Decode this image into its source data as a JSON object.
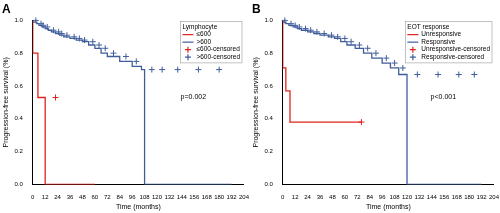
{
  "chart_data": [
    {
      "type": "line",
      "title": "A",
      "x_label": "Time (months)",
      "y_label": "Progression-free survival (%)",
      "legend_title": "Lymphocyte",
      "legend": "upper right",
      "annotation": "p=0.002",
      "grid": false,
      "xlim": [
        0,
        204
      ],
      "xticks": [
        0,
        12,
        24,
        36,
        48,
        60,
        72,
        84,
        96,
        108,
        120,
        132,
        144,
        156,
        168,
        180,
        192,
        204
      ],
      "ylim": [
        0,
        1
      ],
      "yticks": [
        {
          "value": 0,
          "label": "0.0"
        },
        0.2,
        0.4,
        0.6,
        0.8,
        {
          "value": 1,
          "label": "1.0"
        }
      ],
      "series": [
        {
          "name": "≤600",
          "type": "line",
          "line_style": "step",
          "color": "#e0231c",
          "x": [
            0,
            5,
            12,
            60
          ],
          "values": [
            1,
            0.8,
            0.53,
            0
          ]
        },
        {
          "name": ">600",
          "type": "line",
          "line_style": "step",
          "color": "#3f5d9c",
          "x": [
            0,
            4,
            6,
            9,
            12,
            15,
            18,
            22,
            26,
            30,
            36,
            42,
            48,
            54,
            60,
            66,
            72,
            84,
            96,
            105,
            108,
            192
          ],
          "values": [
            1,
            0.99,
            0.98,
            0.97,
            0.96,
            0.95,
            0.94,
            0.93,
            0.92,
            0.91,
            0.9,
            0.89,
            0.88,
            0.87,
            0.85,
            0.83,
            0.8,
            0.78,
            0.75,
            0.72,
            0.7,
            0
          ]
        },
        {
          "name": "≤600-censored",
          "type": "scatter",
          "marker": "plus",
          "color": "#e0231c",
          "x": [
            22
          ],
          "values": [
            0.53
          ]
        },
        {
          "name": ">600-censored",
          "type": "scatter",
          "marker": "plus",
          "color": "#3f5d9c",
          "x": [
            3,
            8,
            10,
            14,
            20,
            25,
            28,
            33,
            40,
            45,
            50,
            58,
            64,
            70,
            78,
            90,
            100,
            115,
            125,
            140,
            160,
            180
          ],
          "values": [
            1,
            0.98,
            0.97,
            0.96,
            0.94,
            0.93,
            0.92,
            0.91,
            0.9,
            0.89,
            0.88,
            0.87,
            0.85,
            0.83,
            0.8,
            0.78,
            0.75,
            0.7,
            0.7,
            0.7,
            0.7,
            0.7
          ]
        }
      ]
    },
    {
      "type": "line",
      "title": "B",
      "x_label": "Time (months)",
      "y_label": "Progression-free survival (%)",
      "legend_title": "EOT response",
      "legend": "upper right",
      "annotation": "p<0.001",
      "grid": false,
      "xlim": [
        0,
        204
      ],
      "xticks": [
        0,
        12,
        24,
        36,
        48,
        60,
        72,
        84,
        96,
        108,
        120,
        132,
        144,
        156,
        168,
        180,
        192,
        204
      ],
      "ylim": [
        0,
        1
      ],
      "yticks": [
        {
          "value": 0,
          "label": "0.0"
        },
        0.2,
        0.4,
        0.6,
        0.8,
        {
          "value": 1,
          "label": "1.0"
        }
      ],
      "series": [
        {
          "name": "Unresponsive",
          "type": "line",
          "line_style": "step",
          "color": "#e0231c",
          "x": [
            0,
            3,
            7,
            12,
            76
          ],
          "values": [
            1,
            0.71,
            0.57,
            0.38,
            0.38
          ]
        },
        {
          "name": "Responsive",
          "type": "line",
          "line_style": "step",
          "color": "#3f5d9c",
          "x": [
            0,
            3,
            6,
            10,
            14,
            18,
            24,
            30,
            36,
            44,
            50,
            56,
            62,
            70,
            78,
            86,
            96,
            104,
            112,
            120,
            192
          ],
          "values": [
            1,
            0.99,
            0.98,
            0.97,
            0.96,
            0.95,
            0.94,
            0.93,
            0.92,
            0.91,
            0.9,
            0.89,
            0.87,
            0.85,
            0.83,
            0.8,
            0.77,
            0.74,
            0.71,
            0.67,
            0
          ]
        },
        {
          "name": "Unresponsive-censored",
          "type": "scatter",
          "marker": "plus",
          "color": "#e0231c",
          "x": [
            76
          ],
          "values": [
            0.38
          ]
        },
        {
          "name": "Responsive-censored",
          "type": "scatter",
          "marker": "plus",
          "color": "#3f5d9c",
          "x": [
            2,
            8,
            12,
            16,
            22,
            27,
            33,
            40,
            47,
            53,
            60,
            66,
            74,
            82,
            90,
            100,
            108,
            116,
            130,
            150,
            170,
            185
          ],
          "values": [
            1,
            0.98,
            0.97,
            0.96,
            0.95,
            0.94,
            0.93,
            0.92,
            0.91,
            0.9,
            0.89,
            0.87,
            0.85,
            0.83,
            0.8,
            0.77,
            0.74,
            0.71,
            0.67,
            0.67,
            0.67,
            0.67
          ]
        }
      ]
    }
  ]
}
